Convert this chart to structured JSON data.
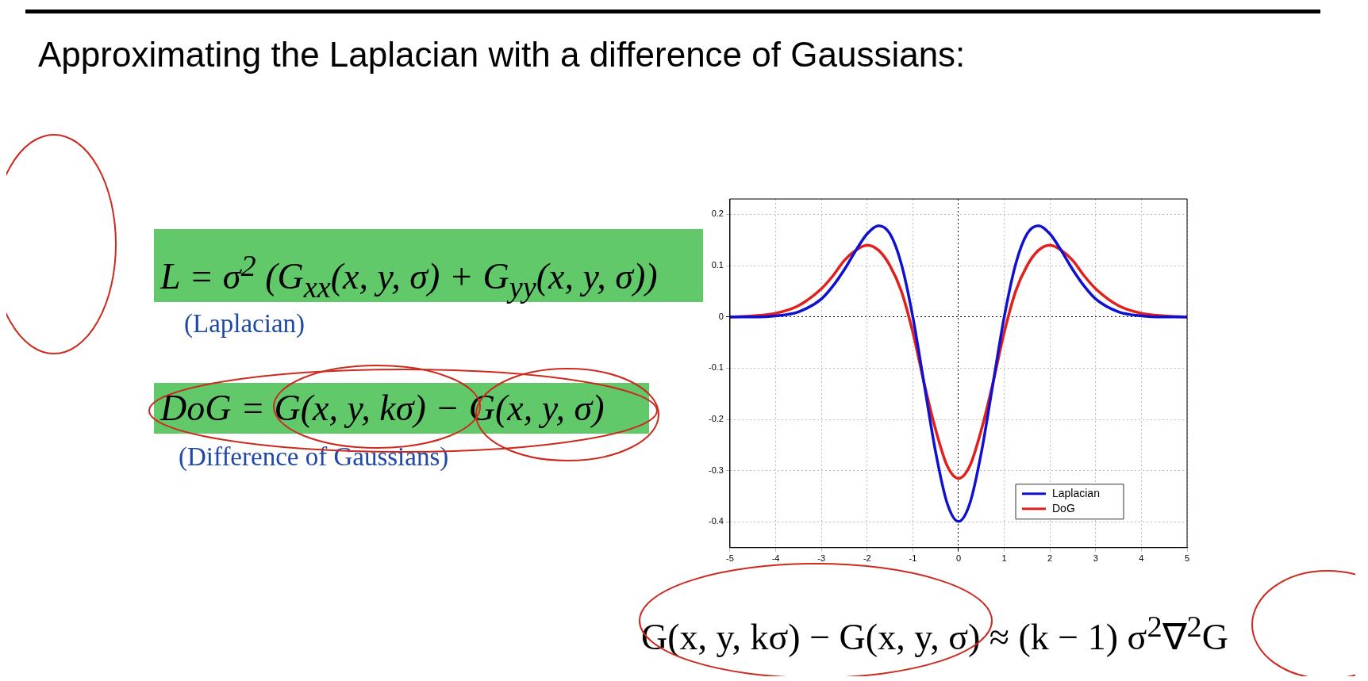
{
  "chart_data": {
    "type": "line",
    "title": "Approximating the Laplacian with a difference of Gaussians:",
    "annotations": [
      "L = σ$^{2}$ (G$_{xx}$(x, y, σ) + G$_{yy}$(x, y, σ))",
      "(Laplacian)",
      "DoG = G(x, y, kσ) − G(x, y, σ)",
      "(Difference of Gaussians)",
      "G(x, y, kσ) − G(x, y, σ) ≈ (k − 1) σ$^{2}$∇$^{2}$G"
    ],
    "x": [
      -5,
      -4.5,
      -4,
      -3.5,
      -3,
      -2.75,
      -2.5,
      -2.25,
      -2,
      -1.75,
      -1.5,
      -1.25,
      -1,
      -0.75,
      -0.5,
      -0.25,
      0,
      0.25,
      0.5,
      0.75,
      1,
      1.25,
      1.5,
      1.75,
      2,
      2.25,
      2.5,
      2.75,
      3,
      3.5,
      4,
      4.5,
      5
    ],
    "series": [
      {
        "name": "Laplacian",
        "color": "#1010d0",
        "values": [
          0,
          0,
          0.002,
          0.01,
          0.035,
          0.06,
          0.092,
          0.129,
          0.162,
          0.178,
          0.162,
          0.103,
          0,
          -0.132,
          -0.264,
          -0.363,
          -0.399,
          -0.363,
          -0.264,
          -0.132,
          0,
          0.103,
          0.162,
          0.178,
          0.162,
          0.129,
          0.092,
          0.06,
          0.035,
          0.01,
          0.002,
          0,
          0
        ]
      },
      {
        "name": "DoG",
        "color": "#e0201c",
        "values": [
          0,
          0.002,
          0.007,
          0.022,
          0.055,
          0.08,
          0.11,
          0.13,
          0.14,
          0.13,
          0.1,
          0.05,
          -0.03,
          -0.13,
          -0.22,
          -0.29,
          -0.315,
          -0.29,
          -0.22,
          -0.13,
          -0.03,
          0.05,
          0.1,
          0.13,
          0.14,
          0.13,
          0.11,
          0.08,
          0.055,
          0.022,
          0.007,
          0.002,
          0
        ]
      }
    ],
    "xlim": [
      -5,
      5
    ],
    "ylim": [
      -0.45,
      0.23
    ],
    "xticks": [
      -5,
      -4,
      -3,
      -2,
      -1,
      0,
      1,
      2,
      3,
      4,
      5
    ],
    "yticks": [
      -0.4,
      -0.3,
      -0.2,
      -0.1,
      0,
      0.1,
      0.2
    ],
    "grid": true,
    "legend": "bottom right",
    "marker": "none"
  }
}
